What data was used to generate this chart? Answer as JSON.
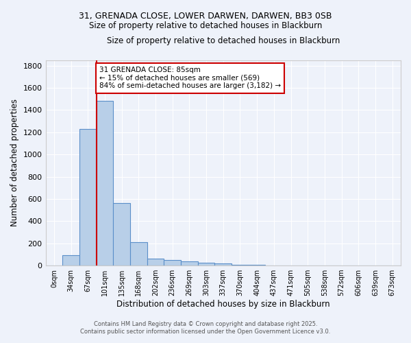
{
  "title_line1": "31, GRENADA CLOSE, LOWER DARWEN, DARWEN, BB3 0SB",
  "title_line2": "Size of property relative to detached houses in Blackburn",
  "xlabel": "Distribution of detached houses by size in Blackburn",
  "ylabel": "Number of detached properties",
  "categories": [
    "0sqm",
    "34sqm",
    "67sqm",
    "101sqm",
    "135sqm",
    "168sqm",
    "202sqm",
    "236sqm",
    "269sqm",
    "303sqm",
    "337sqm",
    "370sqm",
    "404sqm",
    "437sqm",
    "471sqm",
    "505sqm",
    "538sqm",
    "572sqm",
    "606sqm",
    "639sqm",
    "673sqm"
  ],
  "values": [
    0,
    95,
    1230,
    1480,
    565,
    210,
    65,
    50,
    40,
    28,
    20,
    8,
    5,
    2,
    0,
    0,
    0,
    0,
    0,
    0,
    0
  ],
  "bar_color": "#b8cfe8",
  "bar_edge_color": "#5b8fc9",
  "red_line_x": 2.53,
  "ylim": [
    0,
    1850
  ],
  "yticks": [
    0,
    200,
    400,
    600,
    800,
    1000,
    1200,
    1400,
    1600,
    1800
  ],
  "annotation_text_line1": "31 GRENADA CLOSE: 85sqm",
  "annotation_text_line2": "← 15% of detached houses are smaller (569)",
  "annotation_text_line3": "84% of semi-detached houses are larger (3,182) →",
  "footnote1": "Contains HM Land Registry data © Crown copyright and database right 2025.",
  "footnote2": "Contains public sector information licensed under the Open Government Licence v3.0.",
  "background_color": "#eef2fa",
  "grid_color": "#ffffff",
  "annotation_box_color": "#ffffff",
  "annotation_box_edge": "#cc0000"
}
